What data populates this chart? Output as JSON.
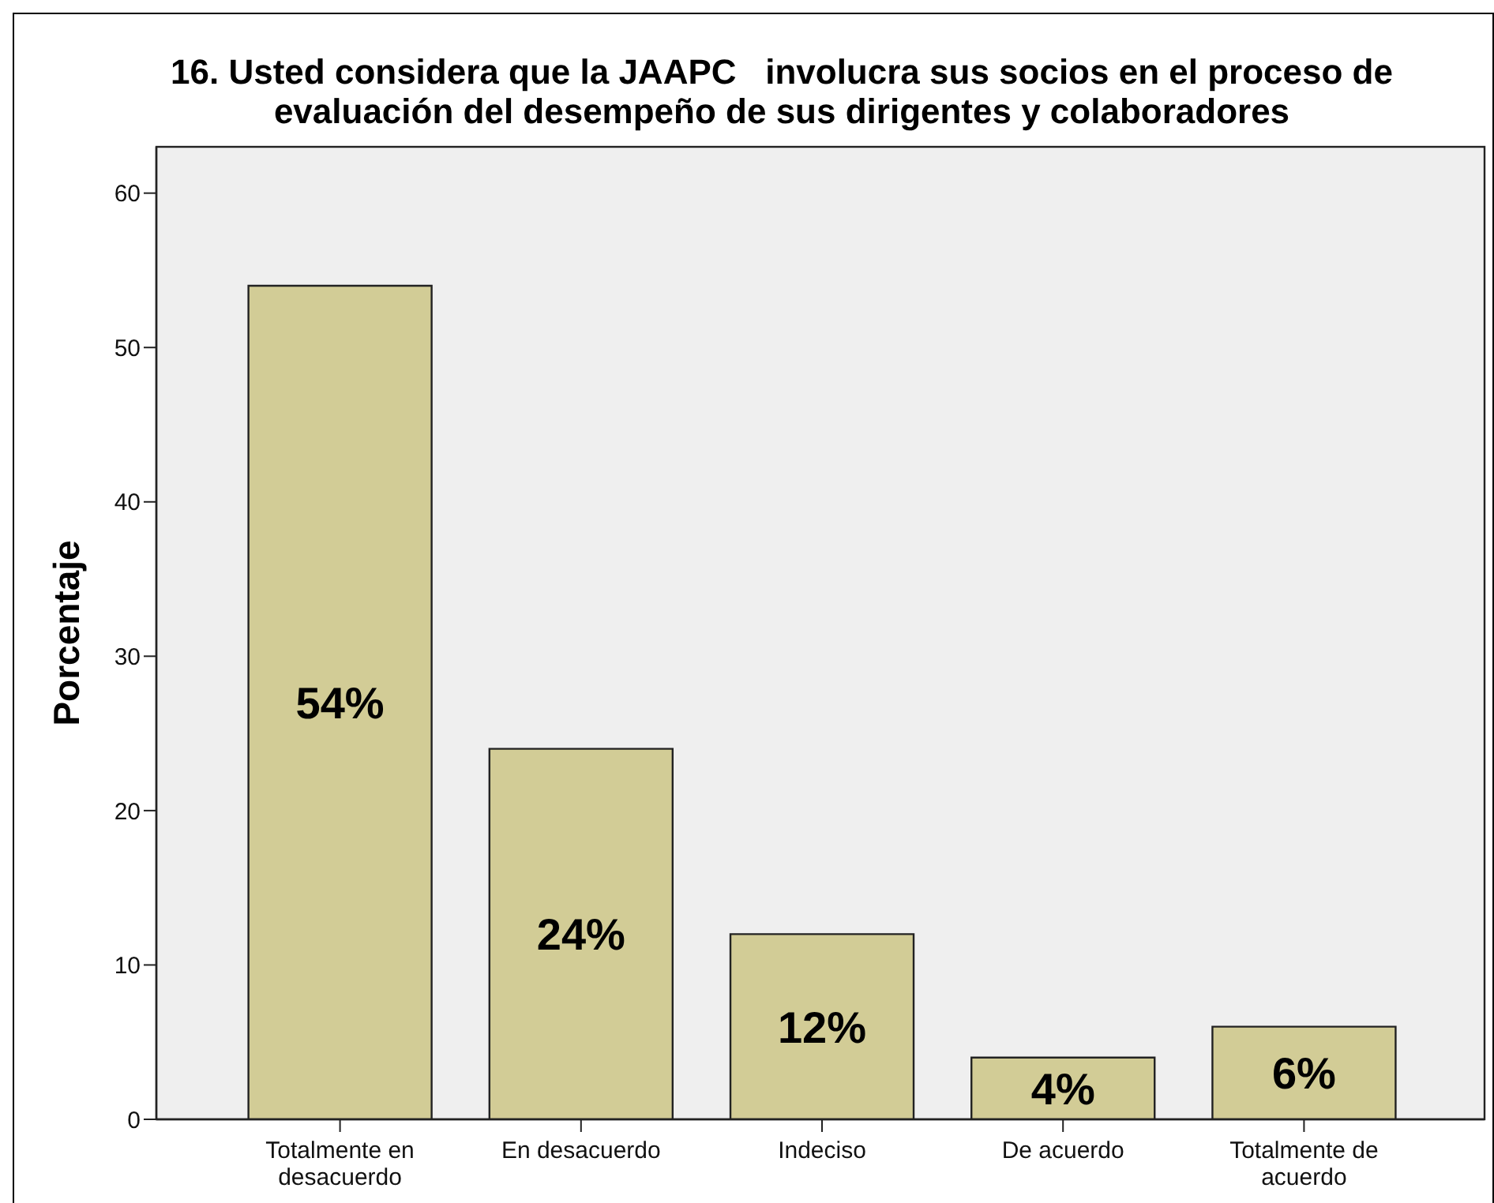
{
  "chart_data": {
    "type": "bar",
    "title": "16. Usted considera que la JAAPC   involucra sus socios en el proceso de evaluación del desempeño de sus dirigentes y colaboradores",
    "ylabel": "Porcentaje",
    "categories": [
      "Totalmente en desacuerdo",
      "En desacuerdo",
      "Indeciso",
      "De acuerdo",
      "Totalmente de acuerdo"
    ],
    "values": [
      54,
      24,
      12,
      4,
      6
    ],
    "value_labels": [
      "54%",
      "24%",
      "12%",
      "4%",
      "6%"
    ],
    "color": "#d2cc96",
    "ylim": [
      0,
      63
    ],
    "yticks": [
      0,
      10,
      20,
      30,
      40,
      50,
      60
    ]
  }
}
